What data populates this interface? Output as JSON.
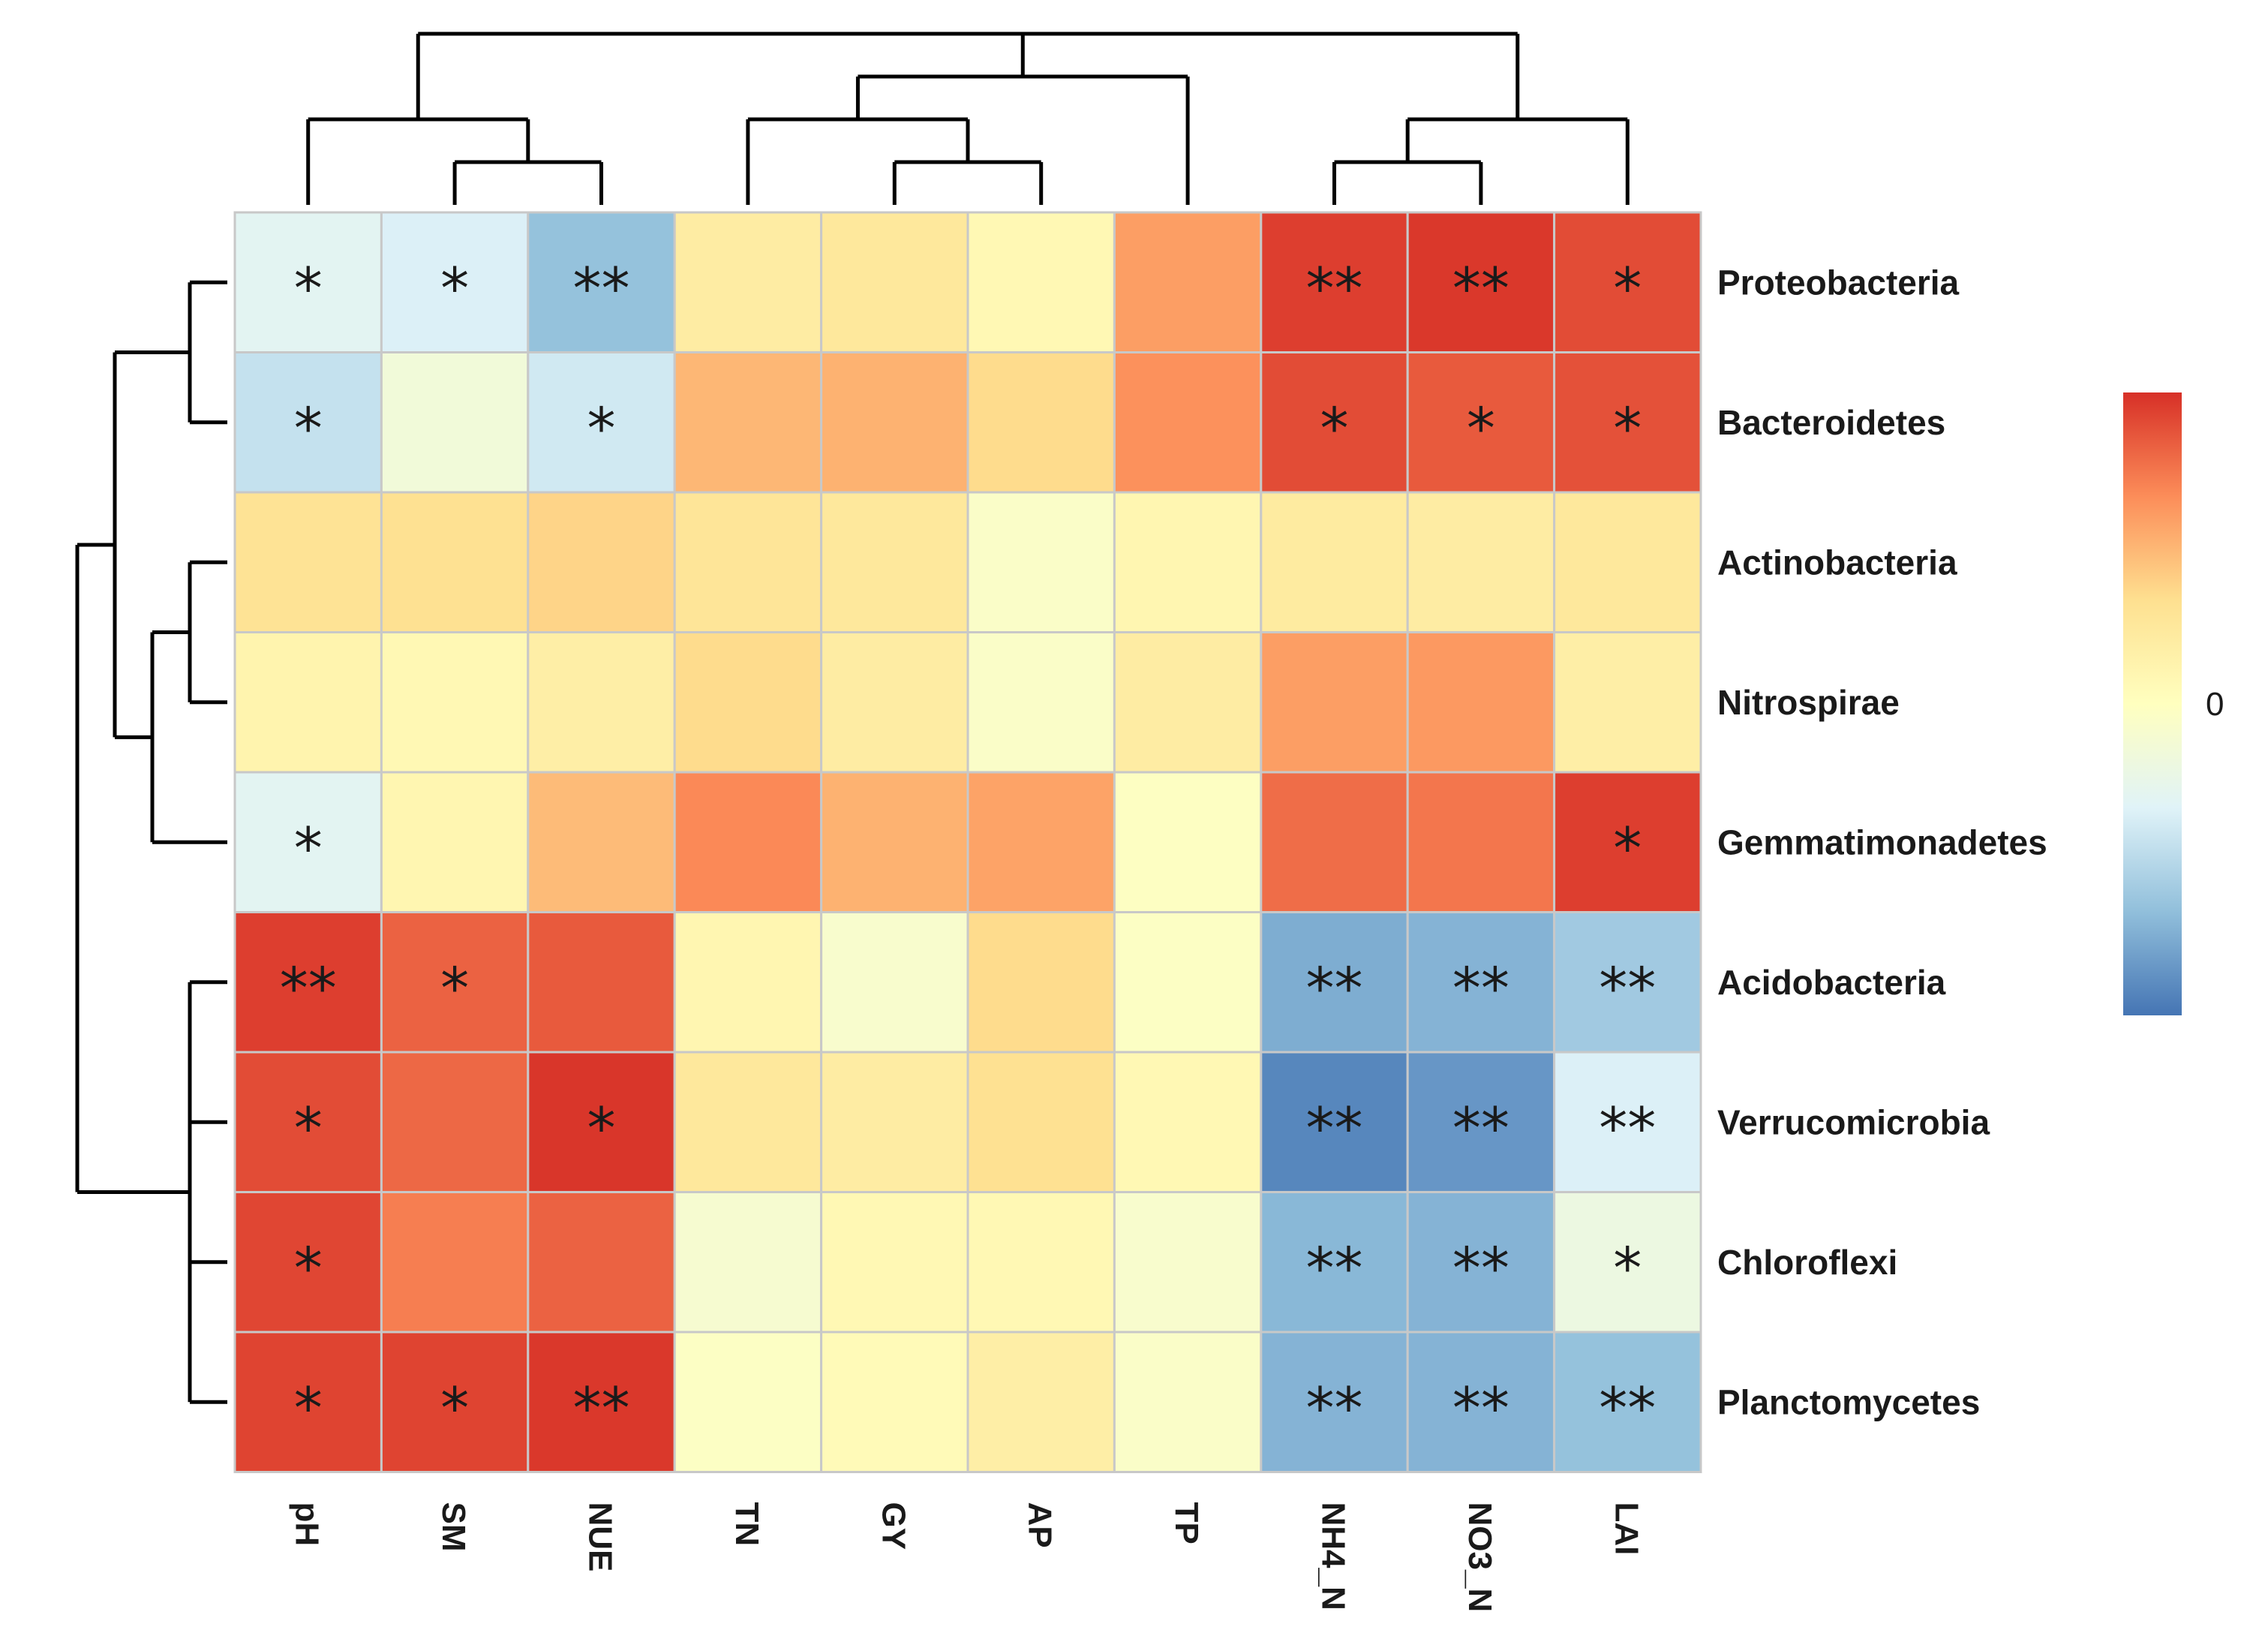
{
  "chart_data": {
    "type": "heatmap",
    "title": "",
    "columns": [
      "pH",
      "SM",
      "NUE",
      "TN",
      "GY",
      "AP",
      "TP",
      "NH4_N",
      "NO3_N",
      "LAI"
    ],
    "rows": [
      "Proteobacteria",
      "Bacteroidetes",
      "Actinobacteria",
      "Nitrospirae",
      "Gemmatimonadetes",
      "Acidobacteria",
      "Verrucomicrobia",
      "Chloroflexi",
      "Planctomycetes"
    ],
    "values": [
      [
        -0.3,
        -0.35,
        -0.65,
        0.2,
        0.25,
        0.08,
        0.6,
        0.95,
        0.97,
        0.9
      ],
      [
        -0.45,
        -0.15,
        -0.4,
        0.5,
        0.52,
        0.35,
        0.65,
        0.9,
        0.85,
        0.88
      ],
      [
        0.3,
        0.32,
        0.38,
        0.28,
        0.25,
        -0.05,
        0.1,
        0.22,
        0.2,
        0.25
      ],
      [
        0.12,
        0.08,
        0.18,
        0.35,
        0.2,
        -0.05,
        0.2,
        0.6,
        0.62,
        0.18
      ],
      [
        -0.3,
        0.1,
        0.48,
        0.68,
        0.52,
        0.58,
        -0.02,
        0.78,
        0.75,
        0.95
      ],
      [
        0.95,
        0.82,
        0.85,
        0.1,
        -0.08,
        0.35,
        -0.03,
        -0.75,
        -0.72,
        -0.6
      ],
      [
        0.9,
        0.8,
        0.98,
        0.25,
        0.2,
        0.32,
        0.08,
        -0.92,
        -0.85,
        -0.35
      ],
      [
        0.92,
        0.72,
        0.82,
        -0.1,
        0.08,
        0.08,
        -0.08,
        -0.7,
        -0.72,
        -0.2
      ],
      [
        0.93,
        0.93,
        0.97,
        -0.03,
        0.05,
        0.18,
        -0.05,
        -0.72,
        -0.72,
        -0.65
      ]
    ],
    "significance": [
      [
        "*",
        "*",
        "**",
        "",
        "",
        "",
        "",
        "**",
        "**",
        "*"
      ],
      [
        "*",
        "",
        "*",
        "",
        "",
        "",
        "",
        "*",
        "*",
        "*"
      ],
      [
        "",
        "",
        "",
        "",
        "",
        "",
        "",
        "",
        "",
        ""
      ],
      [
        "",
        "",
        "",
        "",
        "",
        "",
        "",
        "",
        "",
        ""
      ],
      [
        "*",
        "",
        "",
        "",
        "",
        "",
        "",
        "",
        "",
        "*"
      ],
      [
        "**",
        "*",
        "",
        "",
        "",
        "",
        "",
        "**",
        "**",
        "**"
      ],
      [
        "*",
        "",
        "*",
        "",
        "",
        "",
        "",
        "**",
        "**",
        "**"
      ],
      [
        "*",
        "",
        "",
        "",
        "",
        "",
        "",
        "**",
        "**",
        "*"
      ],
      [
        "*",
        "*",
        "**",
        "",
        "",
        "",
        "",
        "**",
        "**",
        "**"
      ]
    ],
    "colorbar": {
      "range": [
        -1,
        1
      ],
      "ticks": [
        0
      ],
      "tick_labels": [
        "0"
      ],
      "colors": [
        "#4575b4",
        "#91bfdb",
        "#e0f3f8",
        "#ffffbf",
        "#fee090",
        "#fc8d59",
        "#d73027"
      ]
    },
    "column_dendrogram": "((pH,(SM,NUE)),((TN,(GY,AP)),TP),((NH4_N,NO3_N),LAI))",
    "row_dendrogram": "(((Proteobacteria,Bacteroidetes),((Actinobacteria,Nitrospirae),Gemmatimonadetes)),(Acidobacteria,Verrucomicrobia,Chloroflexi,Planctomycetes))"
  }
}
